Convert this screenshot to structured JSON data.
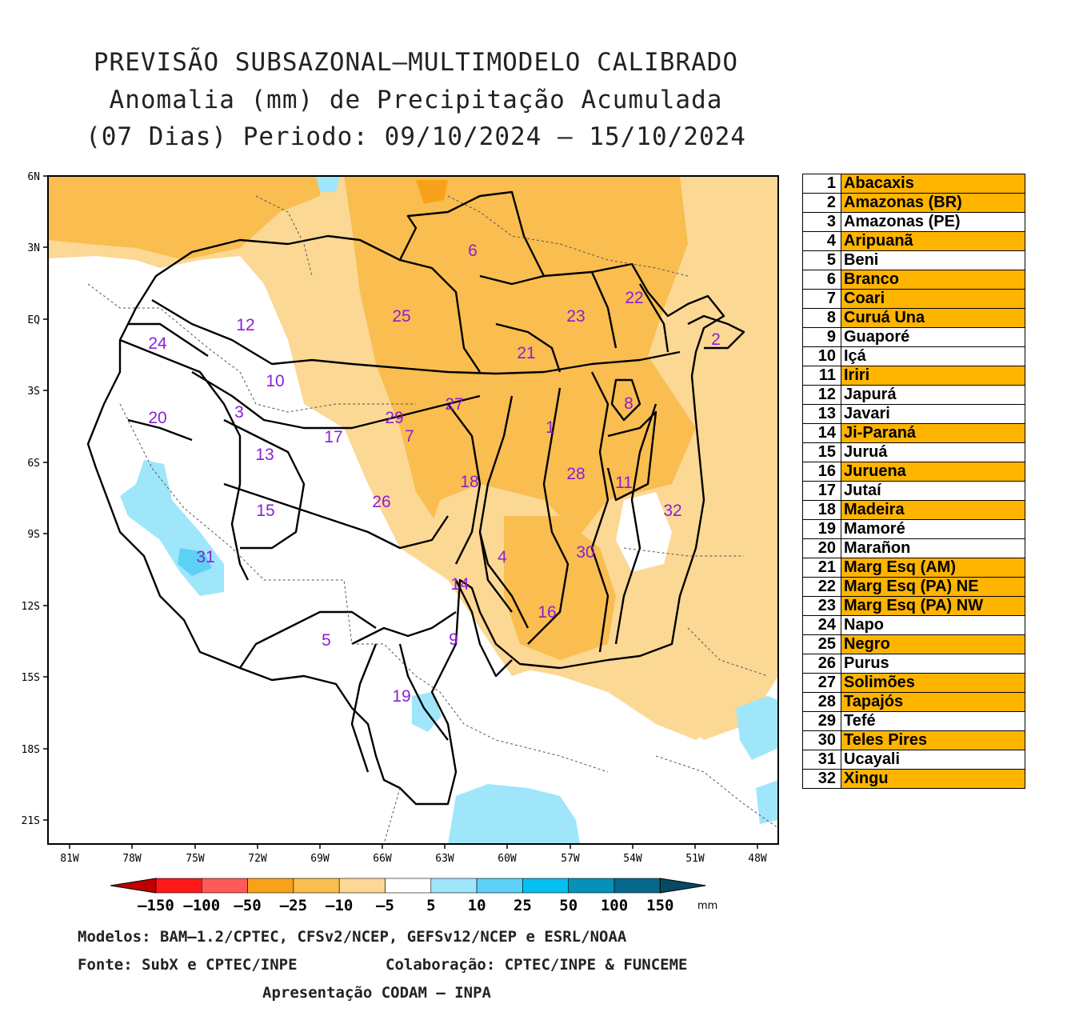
{
  "title": {
    "line1": "PREVISÃO SUBSAZONAL–MULTIMODELO CALIBRADO",
    "line2": "Anomalia (mm) de Precipitação Acumulada",
    "line3": "(07 Dias) Periodo: 09/10/2024 – 15/10/2024"
  },
  "axes": {
    "lat_labels": [
      "6N",
      "3N",
      "EQ",
      "3S",
      "6S",
      "9S",
      "12S",
      "15S",
      "18S",
      "21S"
    ],
    "lon_labels": [
      "81W",
      "78W",
      "75W",
      "72W",
      "69W",
      "66W",
      "63W",
      "60W",
      "57W",
      "54W",
      "51W",
      "48W"
    ]
  },
  "basin_numbers": [
    "1",
    "2",
    "3",
    "4",
    "5",
    "6",
    "7",
    "8",
    "9",
    "10",
    "11",
    "12",
    "13",
    "14",
    "15",
    "16",
    "17",
    "18",
    "19",
    "20",
    "21",
    "22",
    "23",
    "24",
    "25",
    "26",
    "27",
    "28",
    "29",
    "30",
    "31",
    "32"
  ],
  "legend": [
    {
      "num": "1",
      "name": "Abacaxis",
      "highlight": true
    },
    {
      "num": "2",
      "name": "Amazonas (BR)",
      "highlight": true
    },
    {
      "num": "3",
      "name": "Amazonas (PE)",
      "highlight": false
    },
    {
      "num": "4",
      "name": "Aripuanã",
      "highlight": true
    },
    {
      "num": "5",
      "name": "Beni",
      "highlight": false
    },
    {
      "num": "6",
      "name": "Branco",
      "highlight": true
    },
    {
      "num": "7",
      "name": "Coari",
      "highlight": true
    },
    {
      "num": "8",
      "name": "Curuá Una",
      "highlight": true
    },
    {
      "num": "9",
      "name": "Guaporé",
      "highlight": false
    },
    {
      "num": "10",
      "name": "Içá",
      "highlight": false
    },
    {
      "num": "11",
      "name": "Iriri",
      "highlight": true
    },
    {
      "num": "12",
      "name": "Japurá",
      "highlight": false
    },
    {
      "num": "13",
      "name": "Javari",
      "highlight": false
    },
    {
      "num": "14",
      "name": "Ji-Paraná",
      "highlight": true
    },
    {
      "num": "15",
      "name": "Juruá",
      "highlight": false
    },
    {
      "num": "16",
      "name": "Juruena",
      "highlight": true
    },
    {
      "num": "17",
      "name": "Jutaí",
      "highlight": false
    },
    {
      "num": "18",
      "name": "Madeira",
      "highlight": true
    },
    {
      "num": "19",
      "name": "Mamoré",
      "highlight": false
    },
    {
      "num": "20",
      "name": "Marañon",
      "highlight": false
    },
    {
      "num": "21",
      "name": "Marg Esq (AM)",
      "highlight": true
    },
    {
      "num": "22",
      "name": "Marg Esq (PA) NE",
      "highlight": true
    },
    {
      "num": "23",
      "name": "Marg Esq (PA) NW",
      "highlight": true
    },
    {
      "num": "24",
      "name": "Napo",
      "highlight": false
    },
    {
      "num": "25",
      "name": "Negro",
      "highlight": true
    },
    {
      "num": "26",
      "name": "Purus",
      "highlight": false
    },
    {
      "num": "27",
      "name": "Solimões",
      "highlight": true
    },
    {
      "num": "28",
      "name": "Tapajós",
      "highlight": true
    },
    {
      "num": "29",
      "name": "Tefé",
      "highlight": false
    },
    {
      "num": "30",
      "name": "Teles Pires",
      "highlight": true
    },
    {
      "num": "31",
      "name": "Ucayali",
      "highlight": false
    },
    {
      "num": "32",
      "name": "Xingu",
      "highlight": true
    }
  ],
  "colorbar": {
    "labels": [
      "–150",
      "–100",
      "–50",
      "–25",
      "–10",
      "–5",
      "5",
      "10",
      "25",
      "50",
      "100",
      "150"
    ],
    "unit": "mm",
    "colors": [
      "#c00000",
      "#ff1a1a",
      "#ff5a5a",
      "#f7a21a",
      "#f9bd50",
      "#fbd894",
      "#ffffff",
      "#9fe6fb",
      "#5dd1f5",
      "#05bff0",
      "#0692b8",
      "#06688a",
      "#064a64"
    ]
  },
  "credits": {
    "line1": "Modelos: BAM–1.2/CPTEC, CFSv2/NCEP, GEFSv12/NCEP e ESRL/NOAA",
    "line2a": "Fonte: SubX e CPTEC/INPE",
    "line2b": "Colaboração: CPTEC/INPE & FUNCEME",
    "line3": "Apresentação CODAM – INPA"
  }
}
